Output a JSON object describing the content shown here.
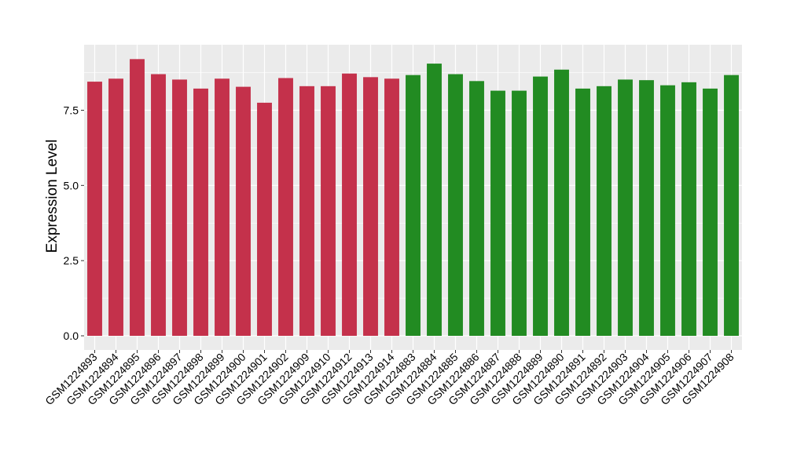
{
  "chart_data": {
    "type": "bar",
    "ylabel": "Expression Level",
    "ylim": [
      0,
      9.8
    ],
    "yticks": [
      "0.0",
      "2.5",
      "5.0",
      "7.5"
    ],
    "grid": true,
    "categories": [
      "GSM1224893",
      "GSM1224894",
      "GSM1224895",
      "GSM1224896",
      "GSM1224897",
      "GSM1224898",
      "GSM1224899",
      "GSM1224900",
      "GSM1224901",
      "GSM1224902",
      "GSM1224909",
      "GSM1224910",
      "GSM1224912",
      "GSM1224913",
      "GSM1224914",
      "GSM1224883",
      "GSM1224884",
      "GSM1224885",
      "GSM1224886",
      "GSM1224887",
      "GSM1224888",
      "GSM1224889",
      "GSM1224890",
      "GSM1224891",
      "GSM1224892",
      "GSM1224903",
      "GSM1224904",
      "GSM1224905",
      "GSM1224906",
      "GSM1224907",
      "GSM1224908"
    ],
    "values": [
      8.45,
      8.55,
      9.2,
      8.7,
      8.52,
      8.22,
      8.55,
      8.28,
      7.75,
      8.57,
      8.3,
      8.3,
      8.72,
      8.6,
      8.55,
      8.67,
      9.05,
      8.7,
      8.47,
      8.15,
      8.15,
      8.62,
      8.85,
      8.22,
      8.3,
      8.52,
      8.5,
      8.33,
      8.43,
      8.22,
      8.67
    ],
    "group_colors": [
      "#C4314B",
      "#C4314B",
      "#C4314B",
      "#C4314B",
      "#C4314B",
      "#C4314B",
      "#C4314B",
      "#C4314B",
      "#C4314B",
      "#C4314B",
      "#C4314B",
      "#C4314B",
      "#C4314B",
      "#C4314B",
      "#C4314B",
      "#228B22",
      "#228B22",
      "#228B22",
      "#228B22",
      "#228B22",
      "#228B22",
      "#228B22",
      "#228B22",
      "#228B22",
      "#228B22",
      "#228B22",
      "#228B22",
      "#228B22",
      "#228B22",
      "#228B22",
      "#228B22"
    ],
    "panel_background": "#EBEBEB",
    "gridline_color": "#FFFFFF"
  }
}
